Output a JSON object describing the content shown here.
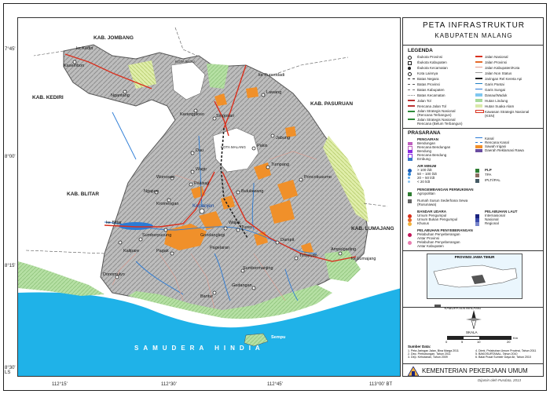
{
  "map": {
    "coords": {
      "lat_top": "7°45'",
      "lat_mid": "8°00'",
      "lat_low": "8°15'",
      "lat_bottom": "8°30' LS",
      "lon_1": "112°15'",
      "lon_2": "112°30'",
      "lon_3": "112°45'",
      "lon_4": "113°00' BT"
    },
    "regions": {
      "jombang": "KAB. JOMBANG",
      "kediri": "KAB. KEDIRI",
      "pasuruan": "KAB. PASURUAN",
      "blitar": "KAB. BLITAR",
      "lumajang": "KAB. LUMAJANG",
      "kota_batu": "KOTA BATU",
      "kota_malang": "KOTA MALANG"
    },
    "sea_label": "SAMUDERA HINDIA",
    "towns": {
      "ke_kediri": "ke Kediri",
      "kasembon": "Kasembon",
      "ngantang": "Ngantang",
      "ke_purwodadi": "ke Purwodadi",
      "lawang": "Lawang",
      "karangploso": "Karangploso",
      "singosari": "Singosari",
      "pakis": "Pakis",
      "jabung": "Jabung",
      "dau": "Dau",
      "tumpang": "Tumpang",
      "wagir": "Wagir",
      "poncokusumo": "Poncokusumo",
      "wonosari": "Wonosari",
      "pakisaji": "Pakisaji",
      "bululawang": "Bululawang",
      "ngajum": "Ngajum",
      "kromengan": "Kromengan",
      "kepanjen": "Kepanjen",
      "wajak": "Wajak",
      "turen": "Turen",
      "ke_blitar": "ke Blitar",
      "sumberpucung": "Sumberpucung",
      "gondanglegi": "Gondanglegi",
      "dampit": "Dampit",
      "kalipare": "Kalipare",
      "pagak": "Pagak",
      "pagelaran": "Pagelaran",
      "tirtoyudo": "Tirtoyudo",
      "ampelgading": "Ampelgading",
      "ke_lumajang": "ke Lumajang",
      "donomulyo": "Donomulyo",
      "bantur": "Bantur",
      "sumbermanjing": "Sumbermanjing",
      "gedangan": "Gedangan",
      "sempu": "Sempu"
    }
  },
  "legend": {
    "title_line1": "PETA INFRASTRUKTUR",
    "title_line2": "KABUPATEN MALANG",
    "legenda_heading": "LEGENDA",
    "col1": [
      "Ibukota Provinsi",
      "Ibukota Kabupaten",
      "Ibukota Kecamatan",
      "Kota Lainnya",
      "Batas Negara",
      "Batas Provinsi",
      "Batas Kabupaten",
      "Batas Kecamatan",
      "Jalan Tol",
      "Rencana Jalan Tol",
      "Jalan Strategis Nasional",
      "(Rencana Terbangun)",
      "Jalan Strategis Nasional",
      "Rencana (Belum Terbangun)"
    ],
    "col2": [
      "Jalan Nasional",
      "Jalan Provinsi",
      "Jalan Kabupaten/Kota",
      "Jalan Non Status",
      "Jaringan Rel Kereta Api",
      "Garis Pantai",
      "Garis Sungai",
      "Danau/Waduk",
      "Hutan Lindung",
      "Hutan Suaka Alam",
      "Kawasan Strategis Nasional",
      "(KSN)"
    ],
    "prasarana_heading": "PRASARANA",
    "prasarana": [
      "PENGAIRAN",
      "Bendungan",
      "Rencana Bendungan",
      "Bendung",
      "Rencana Bendung",
      "Embung",
      "AIR MINUM",
      "> 100 l/dt",
      "50 – 100 l/dt",
      "20 – 50 l/dt",
      "< 20 l/dt",
      "PENGEMBANGAN PERMUKIMAN",
      "Agropolitan",
      "Rumah Susun Sederhana Sewa",
      "(Rusunawa)",
      "BANDAR UDARA",
      "Umum Pengumpul",
      "Umum Bukan Pengumpul",
      "Khusus",
      "PELABUHAN PENYEBERANGAN",
      "Pelabuhan Penyeberangan",
      "Antar Provinsi",
      "Pelabuhan Penyeberangan",
      "Antar Kabupaten"
    ],
    "prasarana_right": [
      "Kanal",
      "Rencana Kanal",
      "Sawah Irigasi",
      "Daerah Reklamasi Rawa",
      "PLP",
      "TPA",
      "IPLT/IPAL",
      "PELABUHAN LAUT",
      "Internasional",
      "Nasional",
      "Regional"
    ],
    "inset_title": "PROVINSI JAWA TIMUR",
    "inset_label": "KABUPATEN MALANG",
    "scale_label": "SKALA",
    "scale_ticks": [
      "0",
      "5",
      "10",
      "20"
    ],
    "scale_unit": "Km",
    "sources_heading": "Sumber Data:",
    "sources": [
      "1. Peta Jaringan Jalan, Bina Marga 2011",
      "2. Dep. Perhubungan, Tahun 2011",
      "3. Dep. Kehutanan, Tahun 2009",
      "4. Direk. Pelabuhan Umum Provinsi, Tahun 2011",
      "5. BAKOSURTANAL, Tahun 2010",
      "6. Balai Pusat Sumber Daya Air, Tahun 2010"
    ],
    "footer": "KEMENTERIAN PEKERJAAN UMUM",
    "credit": "Dijamin oleh Pusdata, 2013"
  },
  "colors": {
    "sea": "#1fb2e8",
    "land": "#b9b9b9",
    "forest_protect": "#a7d99a",
    "forest_reserve": "#d9e9a9",
    "settlement": "#f0902a",
    "road_national": "#d9301e",
    "railway": "#333333",
    "river": "#2b7bd6"
  }
}
